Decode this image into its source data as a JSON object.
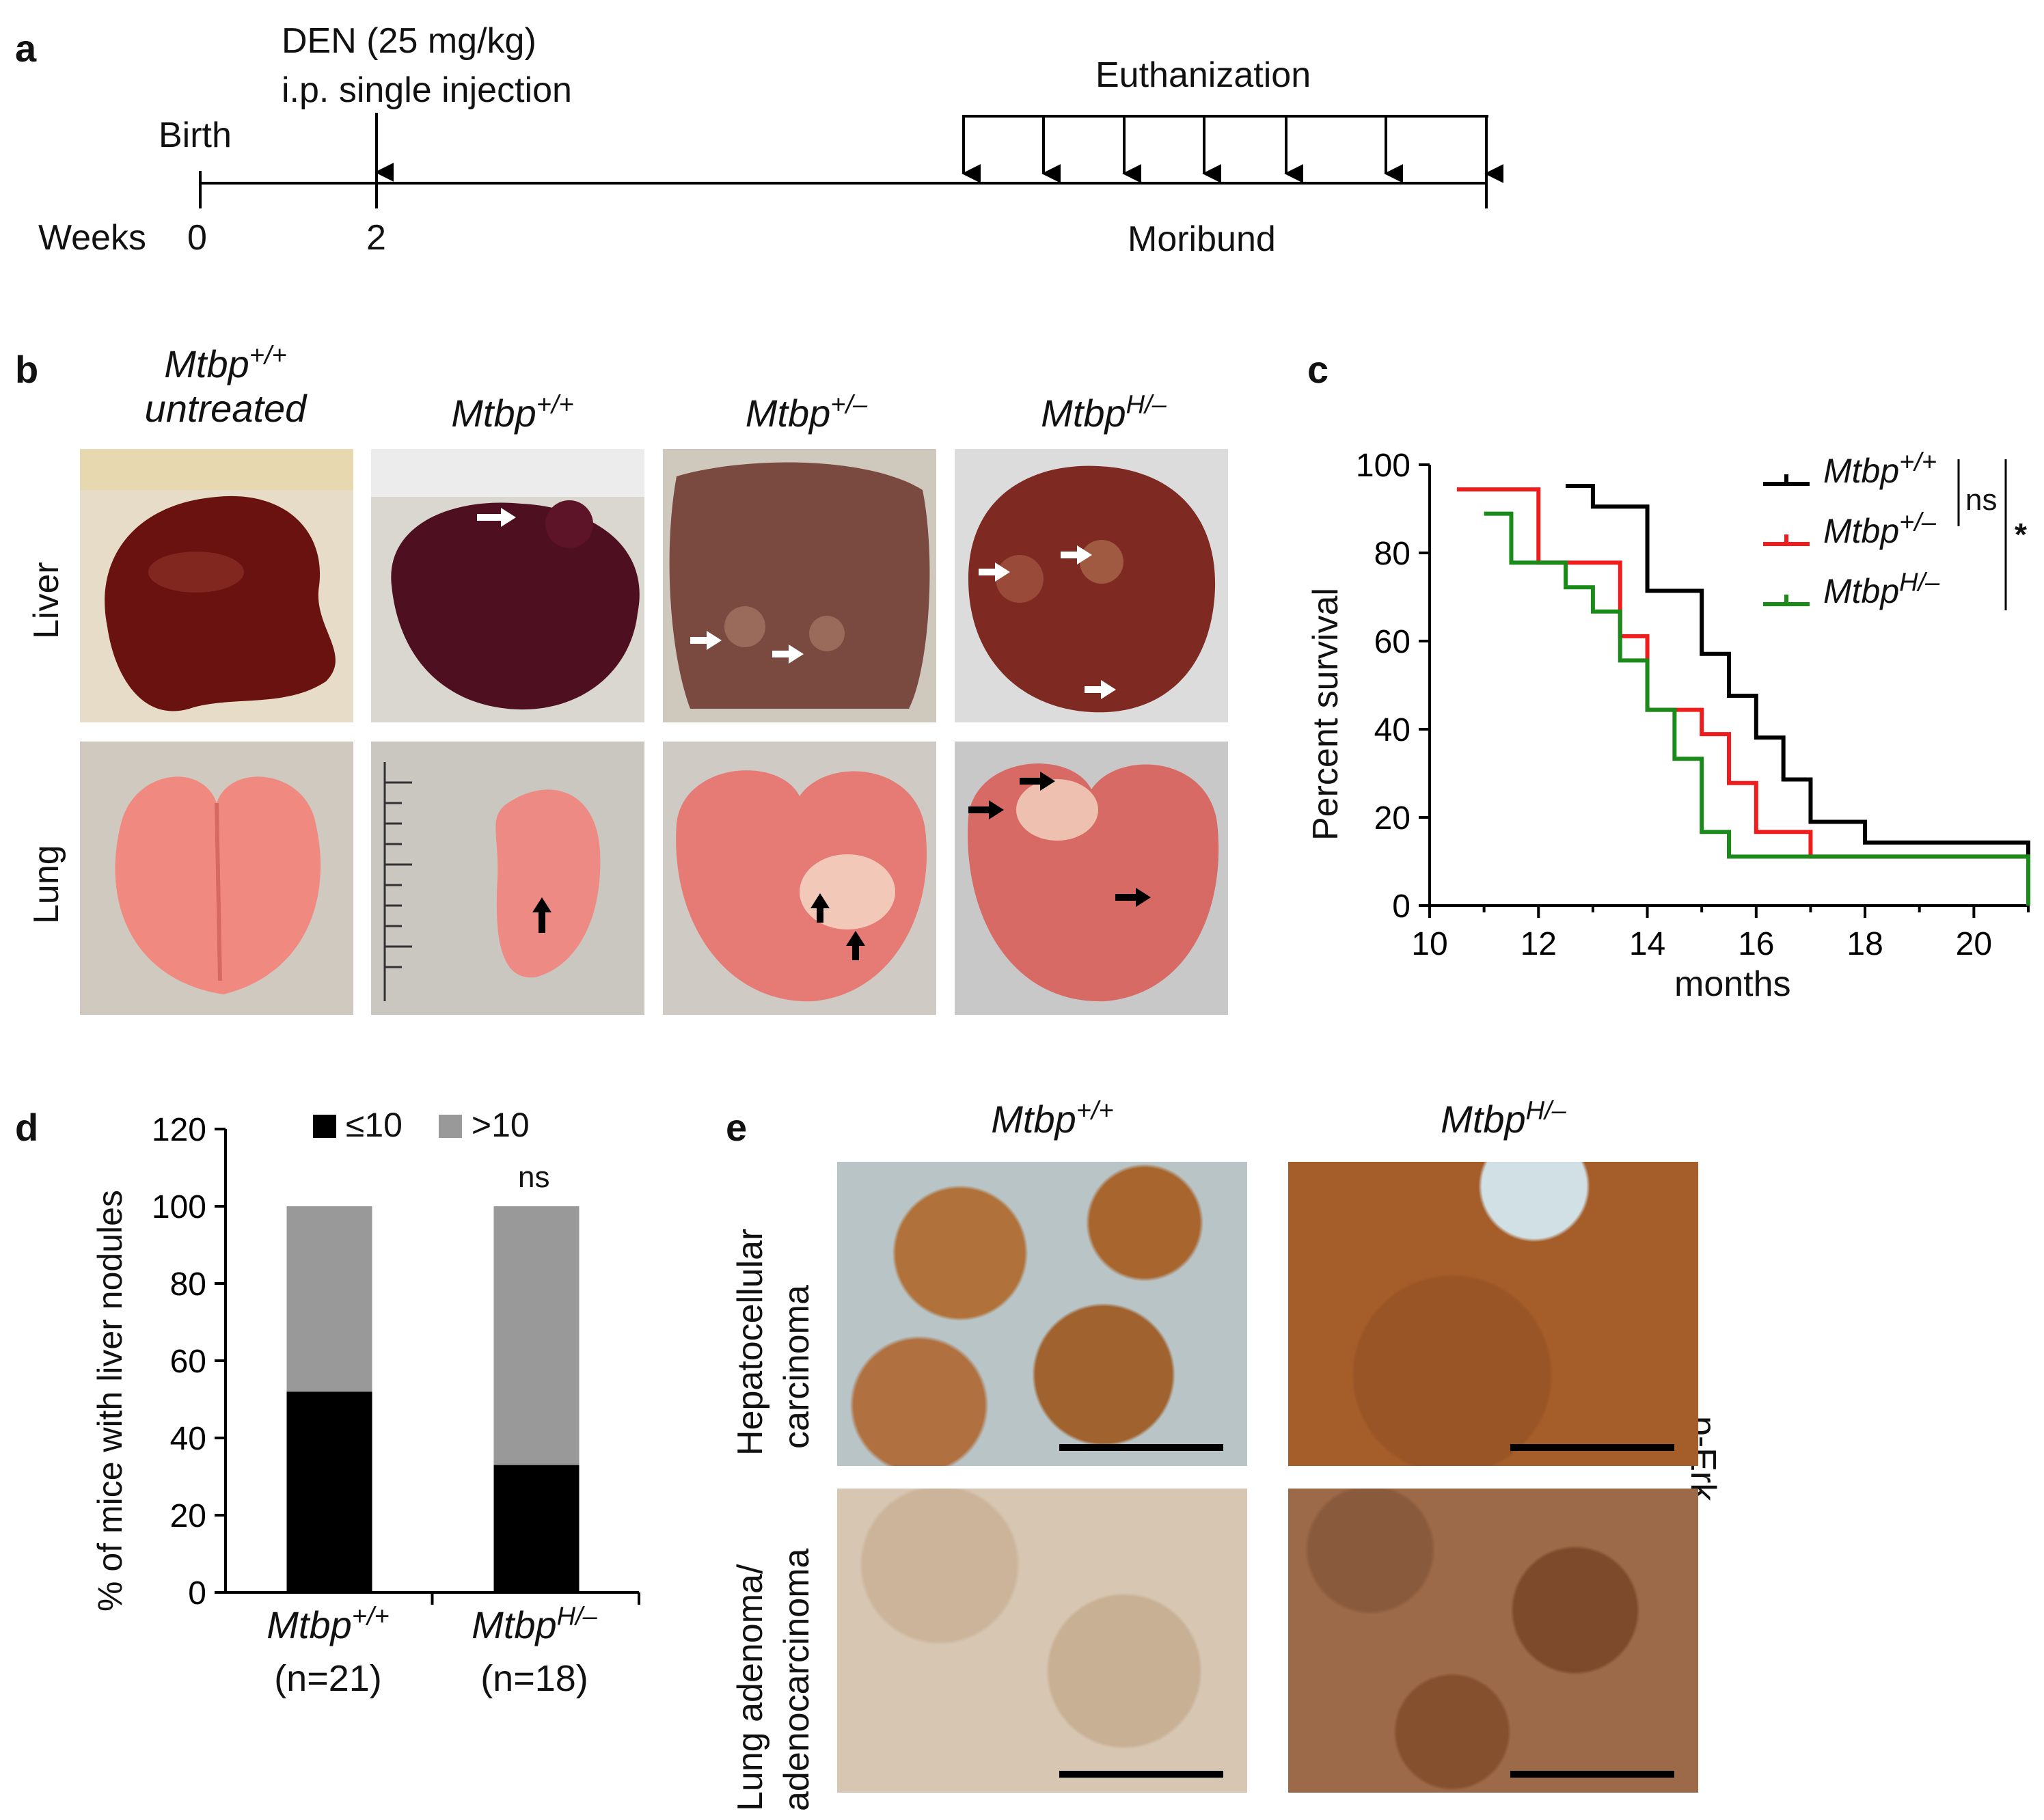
{
  "panel_a": {
    "letter": "a",
    "den_line1": "DEN (25 mg/kg)",
    "den_line2": "i.p. single injection",
    "birth": "Birth",
    "weeks": "Weeks",
    "w0": "0",
    "w2": "2",
    "euthanization": "Euthanization",
    "moribund": "Moribund"
  },
  "panel_b": {
    "letter": "b",
    "col_titles": [
      {
        "base": "Mtbp",
        "sup": "+/+",
        "sub": "untreated"
      },
      {
        "base": "Mtbp",
        "sup": "+/+"
      },
      {
        "base": "Mtbp",
        "sup": "+/–"
      },
      {
        "base": "Mtbp",
        "sup": "H/–"
      }
    ],
    "row_liver": "Liver",
    "row_lung": "Lung",
    "colors": {
      "liver": "#5a1a1a",
      "lung": "#e8807a",
      "bg": "#d9d4cc"
    }
  },
  "panel_c": {
    "letter": "c",
    "ns": "ns",
    "star": "*",
    "chart_data": {
      "type": "line",
      "xlabel": "months",
      "ylabel": "Percent survival",
      "xlim": [
        10,
        21
      ],
      "ylim": [
        0,
        100
      ],
      "xticks": [
        "10",
        "12",
        "14",
        "16",
        "18",
        "20"
      ],
      "yticks": [
        "0",
        "20",
        "40",
        "60",
        "80",
        "100"
      ],
      "series": [
        {
          "name_base": "Mtbp",
          "name_sup": "+/+",
          "color": "#000000",
          "steps": [
            [
              12.5,
              95.2
            ],
            [
              13.0,
              90.5
            ],
            [
              14.0,
              71.4
            ],
            [
              15.0,
              57.1
            ],
            [
              15.5,
              47.6
            ],
            [
              16.0,
              38.1
            ],
            [
              16.5,
              28.6
            ],
            [
              17.0,
              19.0
            ],
            [
              18.0,
              14.3
            ],
            [
              21.0,
              14.3
            ],
            [
              21.0,
              0
            ]
          ]
        },
        {
          "name_base": "Mtbp",
          "name_sup": "+/–",
          "color": "#ee1c1c",
          "steps": [
            [
              10.5,
              94.4
            ],
            [
              12.0,
              77.8
            ],
            [
              13.5,
              61.1
            ],
            [
              14.0,
              44.4
            ],
            [
              15.0,
              38.9
            ],
            [
              15.5,
              27.8
            ],
            [
              16.0,
              16.7
            ],
            [
              17.0,
              11.1
            ],
            [
              21.0,
              11.1
            ],
            [
              21.0,
              0
            ]
          ]
        },
        {
          "name_base": "Mtbp",
          "name_sup": "H/–",
          "color": "#1a8a1a",
          "steps": [
            [
              11.0,
              88.9
            ],
            [
              11.5,
              77.8
            ],
            [
              12.5,
              72.2
            ],
            [
              13.0,
              66.7
            ],
            [
              13.5,
              55.6
            ],
            [
              14.0,
              44.4
            ],
            [
              14.5,
              33.3
            ],
            [
              15.0,
              16.7
            ],
            [
              15.5,
              11.1
            ],
            [
              21.0,
              11.1
            ],
            [
              21.0,
              0
            ]
          ]
        }
      ]
    }
  },
  "panel_d": {
    "letter": "d",
    "ns": "ns",
    "chart_data": {
      "type": "bar",
      "stacked": true,
      "ylabel": "% of mice with liver nodules",
      "ylim": [
        0,
        120
      ],
      "yticks": [
        "0",
        "20",
        "40",
        "60",
        "80",
        "100",
        "120"
      ],
      "categories": [
        {
          "base": "Mtbp",
          "sup": "+/+",
          "n": "(n=21)"
        },
        {
          "base": "Mtbp",
          "sup": "H/–",
          "n": "(n=18)"
        }
      ],
      "series": [
        {
          "name": "≤10",
          "color": "#000000",
          "values": [
            52,
            33
          ]
        },
        {
          "name": ">10",
          "color": "#999999",
          "values": [
            48,
            67
          ]
        }
      ]
    }
  },
  "panel_e": {
    "letter": "e",
    "col1": {
      "base": "Mtbp",
      "sup": "+/+"
    },
    "col2": {
      "base": "Mtbp",
      "sup": "H/–"
    },
    "row1_line1": "Hepatocellular",
    "row1_line2": "carcinoma",
    "row2_line1": "Lung adenoma/",
    "row2_line2": "adenocarcinoma",
    "stain": "p-Erk"
  }
}
